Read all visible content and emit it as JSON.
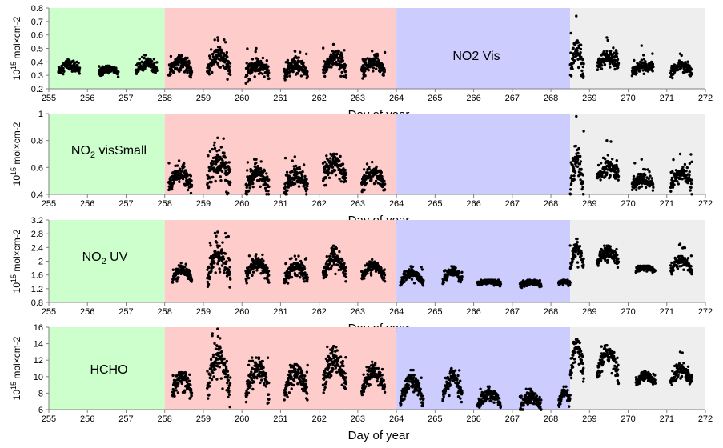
{
  "chart_data": [
    {
      "type": "scatter",
      "label": "NO2 Vis",
      "label_parts": [
        "NO",
        "2",
        " Vis"
      ],
      "label_style": "inline",
      "xlabel": "Day of year",
      "ylabel": "10",
      "ylabel_sup": "15",
      "ylabel_unit": " mol×cm-2",
      "xlim": [
        255,
        272
      ],
      "ylim": [
        0.2,
        0.8
      ],
      "yticks": [
        0.2,
        0.3,
        0.4,
        0.5,
        0.6,
        0.7,
        0.8
      ],
      "ytick_labels": [
        "0.2",
        "0.3",
        "0.4",
        "0.5",
        "0.6",
        "0.7",
        "0.8"
      ],
      "xticks": [
        255,
        256,
        257,
        258,
        259,
        260,
        261,
        262,
        263,
        264,
        265,
        266,
        267,
        268,
        269,
        270,
        271,
        272
      ],
      "clusters": [
        {
          "start": 255.25,
          "end": 255.8,
          "base": 0.33,
          "amp": 0.05,
          "spread": 0.02,
          "max": 0.42
        },
        {
          "start": 256.3,
          "end": 256.8,
          "base": 0.32,
          "amp": 0.03,
          "spread": 0.015,
          "max": 0.37
        },
        {
          "start": 257.25,
          "end": 257.8,
          "base": 0.33,
          "amp": 0.06,
          "spread": 0.02,
          "max": 0.45
        },
        {
          "start": 258.1,
          "end": 258.7,
          "base": 0.32,
          "amp": 0.08,
          "spread": 0.025,
          "max": 0.45
        },
        {
          "start": 259.1,
          "end": 259.7,
          "base": 0.33,
          "amp": 0.12,
          "spread": 0.04,
          "max": 0.58
        },
        {
          "start": 260.1,
          "end": 260.7,
          "base": 0.31,
          "amp": 0.07,
          "spread": 0.03,
          "max": 0.5
        },
        {
          "start": 261.1,
          "end": 261.7,
          "base": 0.3,
          "amp": 0.07,
          "spread": 0.03,
          "max": 0.48
        },
        {
          "start": 262.1,
          "end": 262.7,
          "base": 0.33,
          "amp": 0.1,
          "spread": 0.035,
          "max": 0.53
        },
        {
          "start": 263.1,
          "end": 263.7,
          "base": 0.33,
          "amp": 0.07,
          "spread": 0.025,
          "max": 0.48
        },
        {
          "start": 268.5,
          "end": 268.85,
          "base": 0.33,
          "amp": 0.15,
          "spread": 0.05,
          "max": 0.74
        },
        {
          "start": 269.2,
          "end": 269.75,
          "base": 0.36,
          "amp": 0.15,
          "spread": 0.03,
          "max": 0.58,
          "trend": 0.2
        },
        {
          "start": 270.1,
          "end": 270.65,
          "base": 0.33,
          "amp": 0.08,
          "spread": 0.02,
          "max": 0.52,
          "trend": 0.15
        },
        {
          "start": 271.1,
          "end": 271.65,
          "base": 0.32,
          "amp": 0.05,
          "spread": 0.02,
          "max": 0.46
        }
      ]
    },
    {
      "type": "scatter",
      "label": "NO2 visSmall",
      "label_parts": [
        "NO",
        "2",
        " visSmall"
      ],
      "label_style": "sub",
      "xlabel": "Day of year",
      "ylabel": "10",
      "ylabel_sup": "15",
      "ylabel_unit": " mol×cm-2",
      "xlim": [
        255,
        272
      ],
      "ylim": [
        0.4,
        1.0
      ],
      "yticks": [
        0.4,
        0.6,
        0.8,
        1.0
      ],
      "ytick_labels": [
        "0.4",
        "0.6",
        "0.8",
        "1"
      ],
      "xticks": [
        255,
        256,
        257,
        258,
        259,
        260,
        261,
        262,
        263,
        264,
        265,
        266,
        267,
        268,
        269,
        270,
        271,
        272
      ],
      "clusters": [
        {
          "start": 258.1,
          "end": 258.7,
          "base": 0.46,
          "amp": 0.1,
          "spread": 0.03,
          "max": 0.65
        },
        {
          "start": 259.1,
          "end": 259.7,
          "base": 0.46,
          "amp": 0.2,
          "spread": 0.06,
          "max": 0.82
        },
        {
          "start": 260.1,
          "end": 260.7,
          "base": 0.44,
          "amp": 0.12,
          "spread": 0.04,
          "max": 0.66
        },
        {
          "start": 261.1,
          "end": 261.7,
          "base": 0.44,
          "amp": 0.1,
          "spread": 0.04,
          "max": 0.68
        },
        {
          "start": 262.1,
          "end": 262.7,
          "base": 0.5,
          "amp": 0.12,
          "spread": 0.04,
          "max": 0.7
        },
        {
          "start": 263.1,
          "end": 263.7,
          "base": 0.46,
          "amp": 0.1,
          "spread": 0.03,
          "max": 0.64
        },
        {
          "start": 268.5,
          "end": 268.85,
          "base": 0.44,
          "amp": 0.22,
          "spread": 0.06,
          "max": 0.98
        },
        {
          "start": 269.2,
          "end": 269.75,
          "base": 0.52,
          "amp": 0.15,
          "spread": 0.03,
          "max": 0.8,
          "trend": 0.2
        },
        {
          "start": 270.1,
          "end": 270.65,
          "base": 0.46,
          "amp": 0.1,
          "spread": 0.03,
          "max": 0.66,
          "trend": 0.15
        },
        {
          "start": 271.1,
          "end": 271.65,
          "base": 0.46,
          "amp": 0.1,
          "spread": 0.03,
          "max": 0.7
        }
      ]
    },
    {
      "type": "scatter",
      "label": "NO2 UV",
      "label_parts": [
        "NO",
        "2",
        " UV"
      ],
      "label_style": "sub",
      "xlabel": "Day of year",
      "ylabel": "10",
      "ylabel_sup": "15",
      "ylabel_unit": " mol×cm-2",
      "xlim": [
        255,
        272
      ],
      "ylim": [
        0.8,
        3.2
      ],
      "yticks": [
        0.8,
        1.2,
        1.6,
        2.0,
        2.4,
        2.8,
        3.2
      ],
      "ytick_labels": [
        "0.8",
        "1.2",
        "1.6",
        "2",
        "2.4",
        "2.8",
        "3.2"
      ],
      "xticks": [
        255,
        256,
        257,
        258,
        259,
        260,
        261,
        262,
        263,
        264,
        265,
        266,
        267,
        268,
        269,
        270,
        271,
        272
      ],
      "clusters": [
        {
          "start": 258.2,
          "end": 258.7,
          "base": 1.45,
          "amp": 0.3,
          "spread": 0.08,
          "max": 1.95
        },
        {
          "start": 259.1,
          "end": 259.7,
          "base": 1.5,
          "amp": 0.7,
          "spread": 0.15,
          "max": 2.85
        },
        {
          "start": 260.1,
          "end": 260.7,
          "base": 1.5,
          "amp": 0.45,
          "spread": 0.12,
          "max": 2.2
        },
        {
          "start": 261.1,
          "end": 261.7,
          "base": 1.45,
          "amp": 0.4,
          "spread": 0.12,
          "max": 2.15
        },
        {
          "start": 262.1,
          "end": 262.7,
          "base": 1.6,
          "amp": 0.5,
          "spread": 0.12,
          "max": 2.45
        },
        {
          "start": 263.1,
          "end": 263.7,
          "base": 1.55,
          "amp": 0.3,
          "spread": 0.08,
          "max": 2.05
        },
        {
          "start": 264.1,
          "end": 264.7,
          "base": 1.35,
          "amp": 0.3,
          "spread": 0.06,
          "max": 1.85
        },
        {
          "start": 265.2,
          "end": 265.7,
          "base": 1.4,
          "amp": 0.3,
          "spread": 0.06,
          "max": 1.85
        },
        {
          "start": 266.1,
          "end": 266.7,
          "base": 1.33,
          "amp": 0.1,
          "spread": 0.04,
          "max": 1.45
        },
        {
          "start": 267.2,
          "end": 267.75,
          "base": 1.3,
          "amp": 0.1,
          "spread": 0.04,
          "max": 1.45
        },
        {
          "start": 268.2,
          "end": 268.5,
          "base": 1.32,
          "amp": 0.1,
          "spread": 0.04,
          "max": 1.45
        },
        {
          "start": 268.5,
          "end": 268.85,
          "base": 1.8,
          "amp": 0.6,
          "spread": 0.12,
          "max": 2.65
        },
        {
          "start": 269.2,
          "end": 269.75,
          "base": 1.95,
          "amp": 0.35,
          "spread": 0.1,
          "max": 2.45
        },
        {
          "start": 270.2,
          "end": 270.7,
          "base": 1.72,
          "amp": 0.1,
          "spread": 0.04,
          "max": 1.86
        },
        {
          "start": 271.1,
          "end": 271.65,
          "base": 1.72,
          "amp": 0.3,
          "spread": 0.08,
          "max": 2.5
        }
      ]
    },
    {
      "type": "scatter",
      "label": "HCHO",
      "label_parts": [
        "HCHO",
        "",
        ""
      ],
      "label_style": "none",
      "xlabel": "Day of year",
      "ylabel": "10",
      "ylabel_sup": "15",
      "ylabel_unit": " mol×cm-2",
      "xlim": [
        255,
        272
      ],
      "ylim": [
        6,
        16
      ],
      "yticks": [
        6,
        8,
        10,
        12,
        14,
        16
      ],
      "ytick_labels": [
        "6",
        "8",
        "10",
        "12",
        "14",
        "16"
      ],
      "xticks": [
        255,
        256,
        257,
        258,
        259,
        260,
        261,
        262,
        263,
        264,
        265,
        266,
        267,
        268,
        269,
        270,
        271,
        272
      ],
      "clusters": [
        {
          "start": 258.2,
          "end": 258.7,
          "base": 8.0,
          "amp": 2.0,
          "spread": 0.5,
          "max": 10.5
        },
        {
          "start": 259.1,
          "end": 259.7,
          "base": 8.0,
          "amp": 4.5,
          "spread": 1.0,
          "max": 15.8
        },
        {
          "start": 260.1,
          "end": 260.7,
          "base": 8.0,
          "amp": 3.0,
          "spread": 0.8,
          "max": 12.3
        },
        {
          "start": 261.1,
          "end": 261.7,
          "base": 8.0,
          "amp": 2.5,
          "spread": 0.7,
          "max": 11.5
        },
        {
          "start": 262.1,
          "end": 262.7,
          "base": 9.0,
          "amp": 3.0,
          "spread": 0.8,
          "max": 13.7
        },
        {
          "start": 263.1,
          "end": 263.7,
          "base": 8.5,
          "amp": 2.0,
          "spread": 0.5,
          "max": 11.8
        },
        {
          "start": 264.1,
          "end": 264.7,
          "base": 7.0,
          "amp": 2.5,
          "spread": 0.5,
          "max": 10.8
        },
        {
          "start": 265.2,
          "end": 265.7,
          "base": 7.5,
          "amp": 2.5,
          "spread": 0.5,
          "max": 11.0
        },
        {
          "start": 266.1,
          "end": 266.7,
          "base": 6.5,
          "amp": 1.5,
          "spread": 0.4,
          "max": 8.8
        },
        {
          "start": 267.2,
          "end": 267.75,
          "base": 6.2,
          "amp": 1.5,
          "spread": 0.4,
          "max": 8.5
        },
        {
          "start": 268.2,
          "end": 268.5,
          "base": 6.6,
          "amp": 1.5,
          "spread": 0.4,
          "max": 8.8
        },
        {
          "start": 268.5,
          "end": 268.85,
          "base": 10.0,
          "amp": 3.5,
          "spread": 0.8,
          "max": 14.5
        },
        {
          "start": 269.2,
          "end": 269.75,
          "base": 10.0,
          "amp": 3.0,
          "spread": 0.6,
          "max": 13.8
        },
        {
          "start": 270.2,
          "end": 270.7,
          "base": 9.3,
          "amp": 0.8,
          "spread": 0.3,
          "max": 10.6
        },
        {
          "start": 271.1,
          "end": 271.65,
          "base": 9.3,
          "amp": 1.5,
          "spread": 0.4,
          "max": 13.0
        }
      ]
    }
  ],
  "regions": [
    {
      "name": "green",
      "start": 255,
      "end": 258,
      "color": "#ccffcc"
    },
    {
      "name": "red",
      "start": 258,
      "end": 264,
      "color": "#ffcccc"
    },
    {
      "name": "blue",
      "start": 264,
      "end": 268.5,
      "color": "#ccccff"
    },
    {
      "name": "gray",
      "start": 268.5,
      "end": 272,
      "color": "#eeeeee"
    }
  ],
  "colors": {
    "points": "#000000",
    "axis": "#808080",
    "tick_text": "#000000"
  }
}
